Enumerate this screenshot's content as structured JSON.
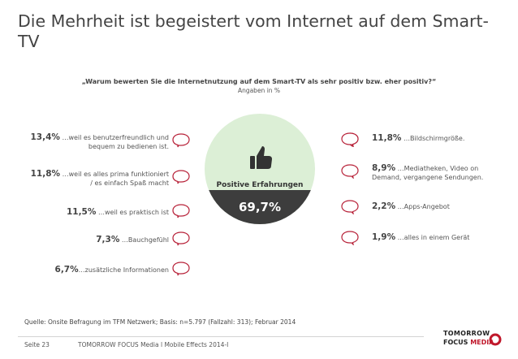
{
  "title": "Die Mehrheit ist begeistert vom Internet auf dem Smart-TV",
  "question": "„Warum  bewerten Sie die Internetnutzung auf dem Smart-TV als sehr positiv bzw. eher positiv?“",
  "subquestion": "Angaben in %",
  "colors": {
    "accent": "#c0182b",
    "circle_top": "#dcefd6",
    "circle_bottom": "#3d3d3d",
    "bubble_stroke": "#b8233a"
  },
  "chart_data": {
    "type": "pie",
    "title": "Positive Erfahrungen",
    "categories": [
      "Positive Erfahrungen"
    ],
    "values": [
      69.7
    ],
    "value_label": "69,7%",
    "reasons_left": [
      {
        "pct": "13,4%",
        "label_line1": "…weil es benutzerfreundlich und",
        "label_line2": "bequem zu bedienen ist.",
        "value": 13.4
      },
      {
        "pct": "11,8%",
        "label_line1": "…weil es alles prima funktioniert",
        "label_line2": "/ es einfach Spaß macht",
        "value": 11.8
      },
      {
        "pct": "11,5%",
        "label_line1": "…weil es praktisch ist",
        "label_line2": "",
        "value": 11.5
      },
      {
        "pct": "7,3%",
        "label_line1": "…Bauchgefühl",
        "label_line2": "",
        "value": 7.3
      },
      {
        "pct": "6,7%",
        "label_line1": "…zusätzliche Informationen",
        "label_line2": "",
        "value": 6.7
      }
    ],
    "reasons_right": [
      {
        "pct": "11,8%",
        "label_line1": "…Bildschirmgröße.",
        "label_line2": "",
        "value": 11.8
      },
      {
        "pct": "8,9%",
        "label_line1": "…Mediatheken, Video on",
        "label_line2": "Demand, vergangene Sendungen.",
        "value": 8.9
      },
      {
        "pct": "2,2%",
        "label_line1": "…Apps-Angebot",
        "label_line2": "",
        "value": 2.2
      },
      {
        "pct": "1,9%",
        "label_line1": "…alles in einem Gerät",
        "label_line2": "",
        "value": 1.9
      }
    ]
  },
  "source": "Quelle: Onsite Befragung im TFM Netzwerk; Basis: n=5.797 (Fallzahl: 313); Februar 2014",
  "footer": {
    "page": "Seite 23",
    "text": "TOMORROW FOCUS Media  l  Mobile Effects 2014-I",
    "logo_line1": "TOMORROW",
    "logo_line2a": "FOCUS",
    "logo_line2b": "MEDIA"
  }
}
